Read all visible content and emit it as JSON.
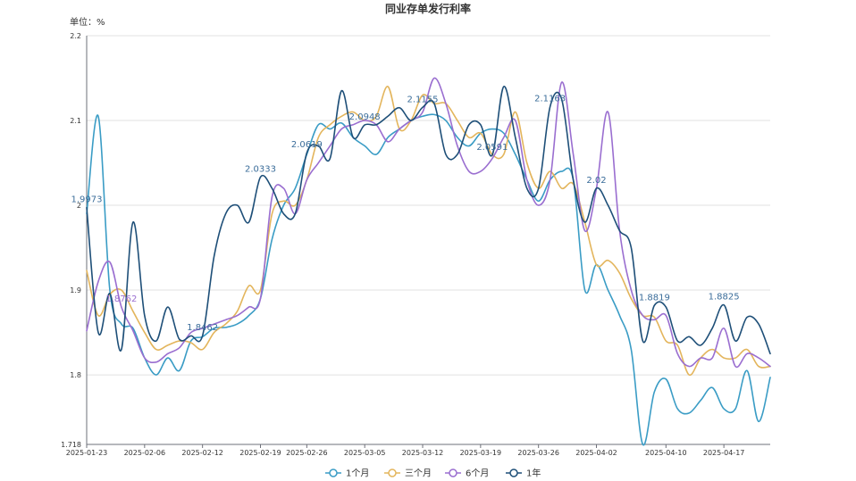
{
  "chart_data": {
    "type": "line",
    "title": "同业存单发行利率",
    "unit_label": "单位：%",
    "ylim": [
      1.718,
      2.2
    ],
    "y_ticks": [
      1.718,
      1.8,
      1.9,
      2,
      2.1,
      2.2
    ],
    "y_tick_labels": [
      "1.718",
      "1.8",
      "1.9",
      "2",
      "2.1",
      "2.2"
    ],
    "x_tick_labels": [
      "2025-01-23",
      "2025-02-06",
      "2025-02-12",
      "2025-02-19",
      "2025-02-26",
      "2025-03-05",
      "2025-03-12",
      "2025-03-19",
      "2025-03-26",
      "2025-04-02",
      "2025-04-10",
      "2025-04-17"
    ],
    "x_count": 60,
    "x_tick_indices": [
      0,
      5,
      10,
      15,
      19,
      24,
      29,
      34,
      39,
      44,
      50,
      55
    ],
    "grid": true,
    "legend_position": "bottom",
    "series": [
      {
        "name": "1个月",
        "color": "#3a9cc5",
        "values": [
          1.99,
          2.105,
          1.9,
          1.86,
          1.855,
          1.82,
          1.8,
          1.82,
          1.805,
          1.84,
          1.845,
          1.855,
          1.856,
          1.86,
          1.87,
          1.89,
          1.96,
          2.0,
          2.02,
          2.06,
          2.095,
          2.09,
          2.097,
          2.08,
          2.07,
          2.06,
          2.08,
          2.09,
          2.1,
          2.105,
          2.107,
          2.1,
          2.08,
          2.07,
          2.085,
          2.09,
          2.085,
          2.06,
          2.03,
          2.005,
          2.03,
          2.04,
          2.03,
          1.9,
          1.93,
          1.9,
          1.87,
          1.83,
          1.718,
          1.78,
          1.795,
          1.76,
          1.755,
          1.77,
          1.785,
          1.76,
          1.76,
          1.805,
          1.745,
          1.797
        ]
      },
      {
        "name": "三个月",
        "color": "#e3b55c",
        "values": [
          1.923,
          1.87,
          1.895,
          1.9,
          1.875,
          1.85,
          1.83,
          1.835,
          1.84,
          1.838,
          1.83,
          1.85,
          1.86,
          1.875,
          1.905,
          1.9,
          1.99,
          2.005,
          2.0,
          2.03,
          2.08,
          2.095,
          2.105,
          2.11,
          2.1,
          2.105,
          2.14,
          2.09,
          2.1,
          2.13,
          2.12,
          2.12,
          2.1,
          2.08,
          2.085,
          2.06,
          2.06,
          2.11,
          2.05,
          2.02,
          2.04,
          2.02,
          2.025,
          1.98,
          1.93,
          1.935,
          1.92,
          1.89,
          1.87,
          1.868,
          1.84,
          1.835,
          1.8,
          1.82,
          1.83,
          1.82,
          1.82,
          1.83,
          1.81,
          1.81
        ]
      },
      {
        "name": "6个月",
        "color": "#9a6ed0",
        "values": [
          1.852,
          1.91,
          1.933,
          1.88,
          1.852,
          1.82,
          1.815,
          1.825,
          1.832,
          1.85,
          1.855,
          1.86,
          1.865,
          1.87,
          1.88,
          1.89,
          2.01,
          2.02,
          1.99,
          2.03,
          2.05,
          2.07,
          2.09,
          2.095,
          2.1,
          2.095,
          2.075,
          2.09,
          2.1,
          2.11,
          2.15,
          2.12,
          2.07,
          2.04,
          2.04,
          2.055,
          2.08,
          2.1,
          2.03,
          2.0,
          2.03,
          2.145,
          2.06,
          1.97,
          2.02,
          2.11,
          1.97,
          1.9,
          1.87,
          1.865,
          1.87,
          1.825,
          1.81,
          1.82,
          1.82,
          1.855,
          1.81,
          1.825,
          1.82,
          1.81
        ]
      },
      {
        "name": "1年",
        "color": "#1e4f78",
        "values": [
          1.9973,
          1.85,
          1.896,
          1.83,
          1.98,
          1.87,
          1.84,
          1.88,
          1.842,
          1.846,
          1.8462,
          1.94,
          1.99,
          2.0,
          1.98,
          2.0333,
          2.02,
          1.99,
          1.99,
          2.0619,
          2.07,
          2.055,
          2.135,
          2.08,
          2.0948,
          2.095,
          2.105,
          2.115,
          2.1,
          2.1155,
          2.12,
          2.06,
          2.06,
          2.095,
          2.095,
          2.0591,
          2.14,
          2.08,
          2.02,
          2.02,
          2.1163,
          2.125,
          2.03,
          1.98,
          2.02,
          2.0,
          1.97,
          1.95,
          1.84,
          1.8819,
          1.88,
          1.84,
          1.845,
          1.835,
          1.855,
          1.8825,
          1.84,
          1.868,
          1.86,
          1.825
        ]
      }
    ],
    "data_labels": [
      {
        "series": 3,
        "index": 0,
        "text": "1.9973"
      },
      {
        "series": 2,
        "index": 3,
        "text": "1.8762"
      },
      {
        "series": 3,
        "index": 10,
        "text": "1.8462"
      },
      {
        "series": 3,
        "index": 15,
        "text": "2.0333"
      },
      {
        "series": 3,
        "index": 19,
        "text": "2.0619"
      },
      {
        "series": 3,
        "index": 24,
        "text": "2.0948"
      },
      {
        "series": 3,
        "index": 29,
        "text": "2.1155"
      },
      {
        "series": 3,
        "index": 35,
        "text": "2.0591"
      },
      {
        "series": 3,
        "index": 40,
        "text": "2.1163"
      },
      {
        "series": 3,
        "index": 44,
        "text": "2.02"
      },
      {
        "series": 3,
        "index": 49,
        "text": "1.8819"
      },
      {
        "series": 3,
        "index": 55,
        "text": "1.8825"
      }
    ]
  }
}
